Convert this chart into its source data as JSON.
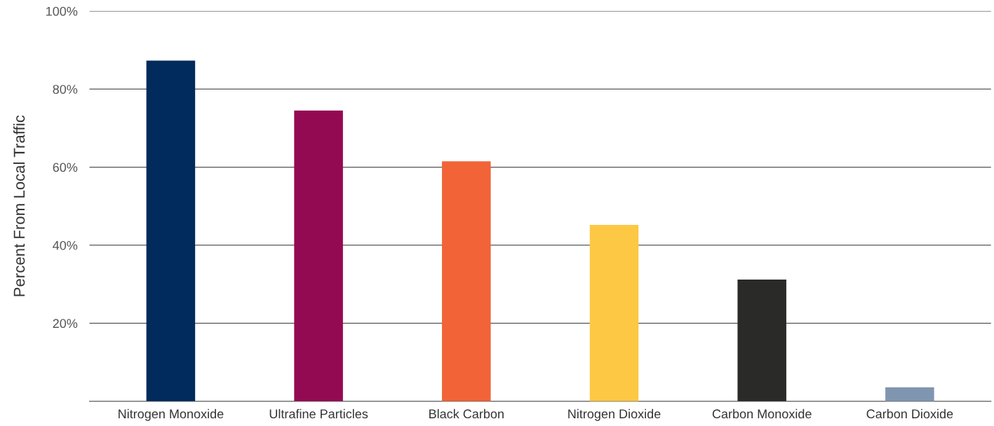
{
  "chart_data": {
    "type": "bar",
    "ylabel": "Percent From Local Traffic",
    "categories": [
      "Nitrogen Monoxide",
      "Ultrafine Particles",
      "Black Carbon",
      "Nitrogen Dioxide",
      "Carbon Monoxide",
      "Carbon Dioxide"
    ],
    "values": [
      87.3,
      74.5,
      61.5,
      45.2,
      31.2,
      3.6
    ],
    "colors": [
      "#002b5c",
      "#930a52",
      "#f26338",
      "#fdc844",
      "#2a2b28",
      "#8096b0"
    ],
    "ylim": [
      0,
      100
    ],
    "yticks": [
      {
        "value": 20,
        "label": "20%"
      },
      {
        "value": 40,
        "label": "40%"
      },
      {
        "value": 60,
        "label": "60%"
      },
      {
        "value": 80,
        "label": "80%"
      },
      {
        "value": 100,
        "label": "100%"
      }
    ],
    "grid": "y",
    "legend": false
  }
}
